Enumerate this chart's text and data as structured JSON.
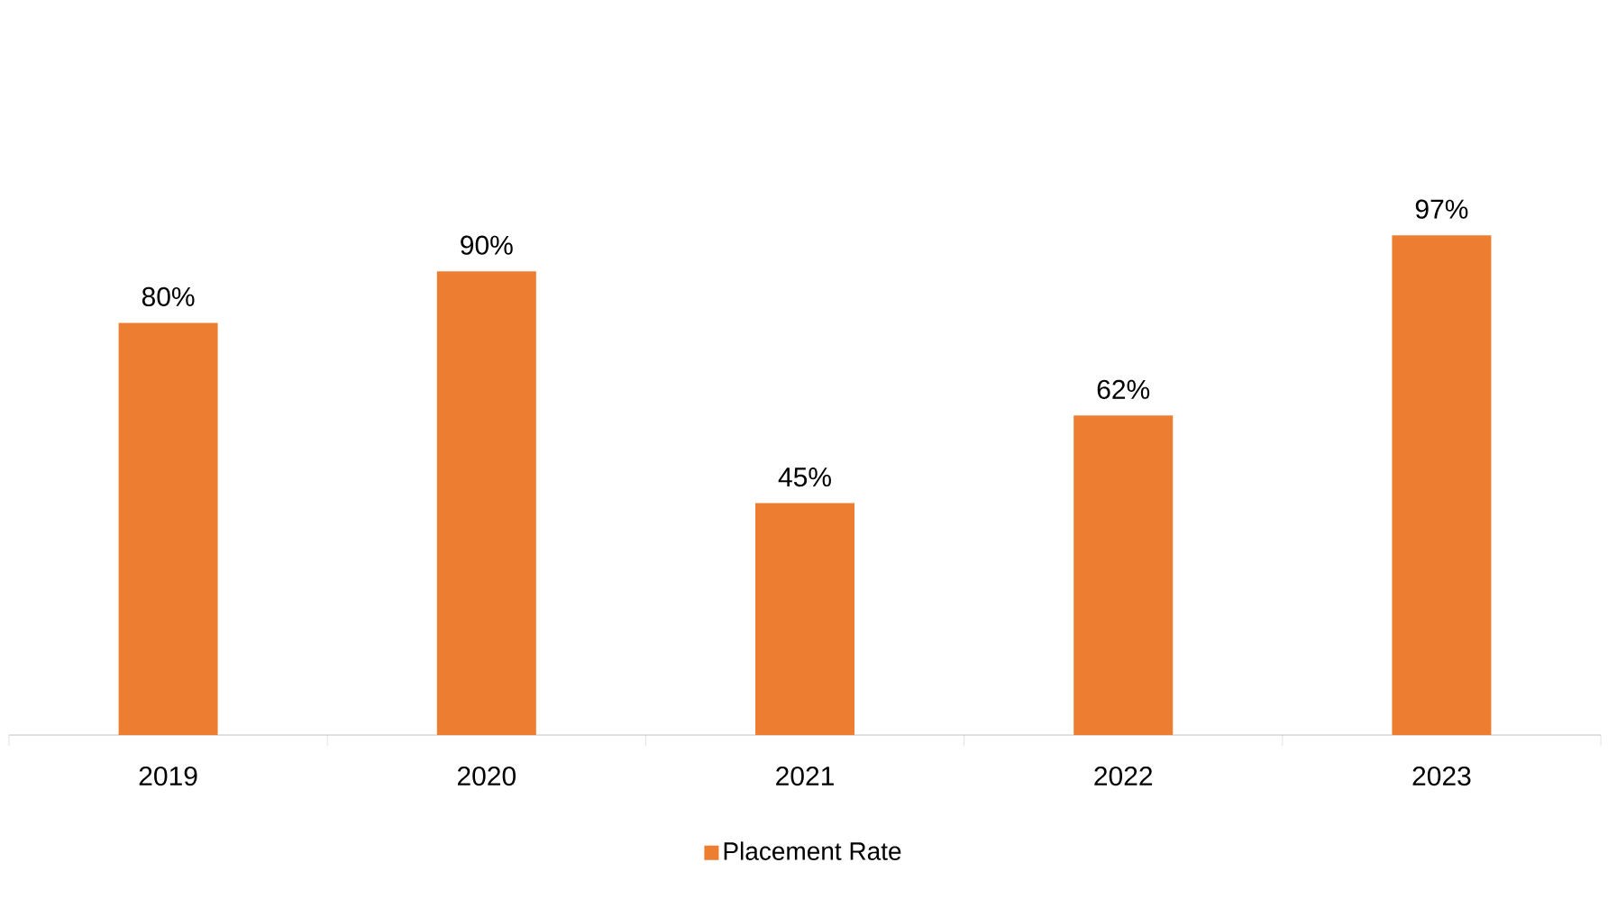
{
  "chart_data": {
    "type": "bar",
    "categories": [
      "2019",
      "2020",
      "2021",
      "2022",
      "2023"
    ],
    "series": [
      {
        "name": "Placement Rate",
        "color": "#ed7d31",
        "values": [
          80,
          90,
          45,
          62,
          97
        ],
        "value_labels": [
          "80%",
          "90%",
          "45%",
          "62%",
          "97%"
        ]
      }
    ],
    "legend": "bottom"
  }
}
